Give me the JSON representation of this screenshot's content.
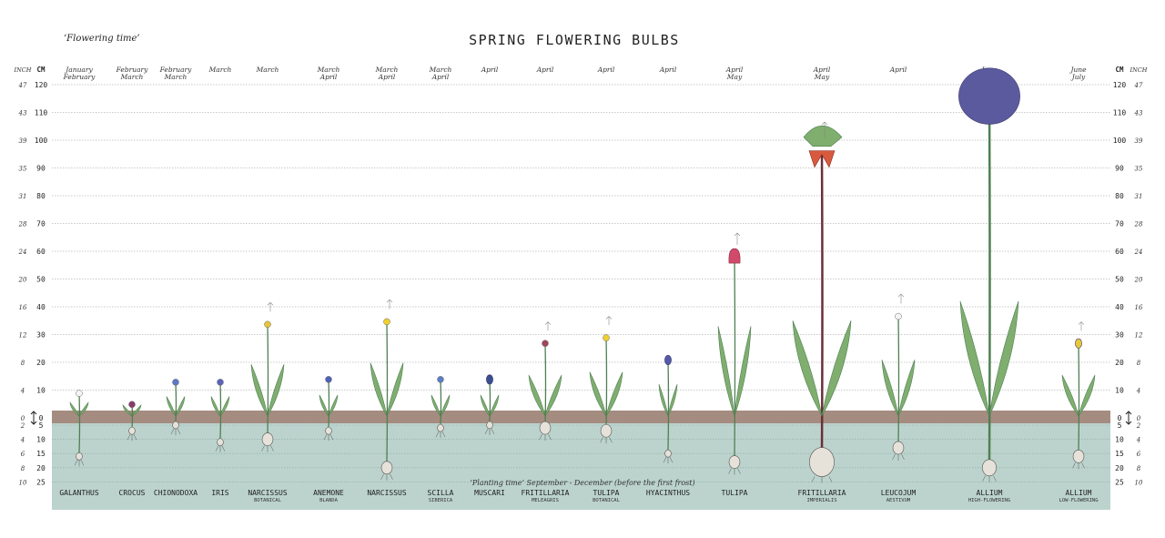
{
  "title": "SPRING FLOWERING BULBS",
  "flowering_label": "‘Flowering time’",
  "planting_label": "‘Planting time’ September - December (before the first frost)",
  "axis": {
    "cm_label": "CM",
    "inch_label": "INCH",
    "above_cm": [
      120,
      110,
      100,
      90,
      80,
      70,
      60,
      50,
      40,
      30,
      20,
      10,
      0
    ],
    "above_inch": [
      47,
      43,
      39,
      35,
      31,
      28,
      24,
      20,
      16,
      12,
      8,
      4,
      0
    ],
    "below_cm": [
      5,
      10,
      15,
      20,
      25
    ],
    "below_inch": [
      2,
      4,
      6,
      8,
      10
    ]
  },
  "colors": {
    "soil": "#a58c80",
    "ground": "#bcd3cd",
    "grid": "#b9b9b9",
    "leaf": "#7fae6f",
    "leaf_dark": "#4f7f52",
    "bulb": "#e6e2da"
  },
  "chart_data": {
    "type": "table",
    "x_unit": "cm",
    "plants": [
      {
        "name": "GALANTHUS",
        "sub": "",
        "months": [
          "January",
          "February"
        ],
        "height_cm": 10,
        "color": "#f4f4f4",
        "bulb_depth_cm": 16
      },
      {
        "name": "CROCUS",
        "sub": "",
        "months": [
          "February",
          "March"
        ],
        "height_cm": 6,
        "color": "#8a3b6a",
        "bulb_depth_cm": 7
      },
      {
        "name": "CHIONODOXA",
        "sub": "",
        "months": [
          "February",
          "March"
        ],
        "height_cm": 14,
        "color": "#5d78c8",
        "bulb_depth_cm": 4
      },
      {
        "name": "IRIS",
        "sub": "",
        "months": [
          "March"
        ],
        "height_cm": 14,
        "color": "#5a64b8",
        "bulb_depth_cm": 11
      },
      {
        "name": "NARCISSUS",
        "sub": "BOTANICAL",
        "months": [
          "March"
        ],
        "height_cm": 35,
        "color": "#e8c43a",
        "bulb_depth_cm": 10
      },
      {
        "name": "ANEMONE",
        "sub": "BLANDA",
        "months": [
          "March",
          "April"
        ],
        "height_cm": 15,
        "color": "#4d62b8",
        "bulb_depth_cm": 7
      },
      {
        "name": "NARCISSUS",
        "sub": "",
        "months": [
          "March",
          "April"
        ],
        "height_cm": 36,
        "color": "#f0d02c",
        "bulb_depth_cm": 20
      },
      {
        "name": "SCILLA",
        "sub": "SIBERICA",
        "months": [
          "March",
          "April"
        ],
        "height_cm": 15,
        "color": "#5a7fc8",
        "bulb_depth_cm": 6
      },
      {
        "name": "MUSCARI",
        "sub": "",
        "months": [
          "April"
        ],
        "height_cm": 15,
        "color": "#3a4f90",
        "bulb_depth_cm": 5
      },
      {
        "name": "FRITILLARIA",
        "sub": "MELEAGRIS",
        "months": [
          "April"
        ],
        "height_cm": 28,
        "color": "#a0455a",
        "bulb_depth_cm": 6
      },
      {
        "name": "TULIPA",
        "sub": "BOTANICAL",
        "months": [
          "April"
        ],
        "height_cm": 30,
        "color": "#f0cf30",
        "bulb_depth_cm": 7
      },
      {
        "name": "HYACINTHUS",
        "sub": "",
        "months": [
          "April"
        ],
        "height_cm": 22,
        "color": "#545aa8",
        "bulb_depth_cm": 15
      },
      {
        "name": "TULIPA",
        "sub": "",
        "months": [
          "April",
          "May"
        ],
        "height_cm": 60,
        "color": "#d24a6a",
        "bulb_depth_cm": 18
      },
      {
        "name": "FRITILLARIA",
        "sub": "IMPERIALIS",
        "months": [
          "April",
          "May"
        ],
        "height_cm": 100,
        "color": "#d85a3e",
        "bulb_depth_cm": 18
      },
      {
        "name": "LEUCOJUM",
        "sub": "AESTIVUM",
        "months": [
          "April"
        ],
        "height_cm": 38,
        "color": "#f4f4f4",
        "bulb_depth_cm": 13
      },
      {
        "name": "ALLIUM",
        "sub": "HIGH-FLOWERING",
        "months": [
          "June",
          "July"
        ],
        "height_cm": 120,
        "color": "#5c5a9e",
        "bulb_depth_cm": 20
      },
      {
        "name": "ALLIUM",
        "sub": "LOW-FLOWERING",
        "months": [
          "June",
          "July"
        ],
        "height_cm": 28,
        "color": "#e6c83a",
        "bulb_depth_cm": 16
      }
    ]
  }
}
